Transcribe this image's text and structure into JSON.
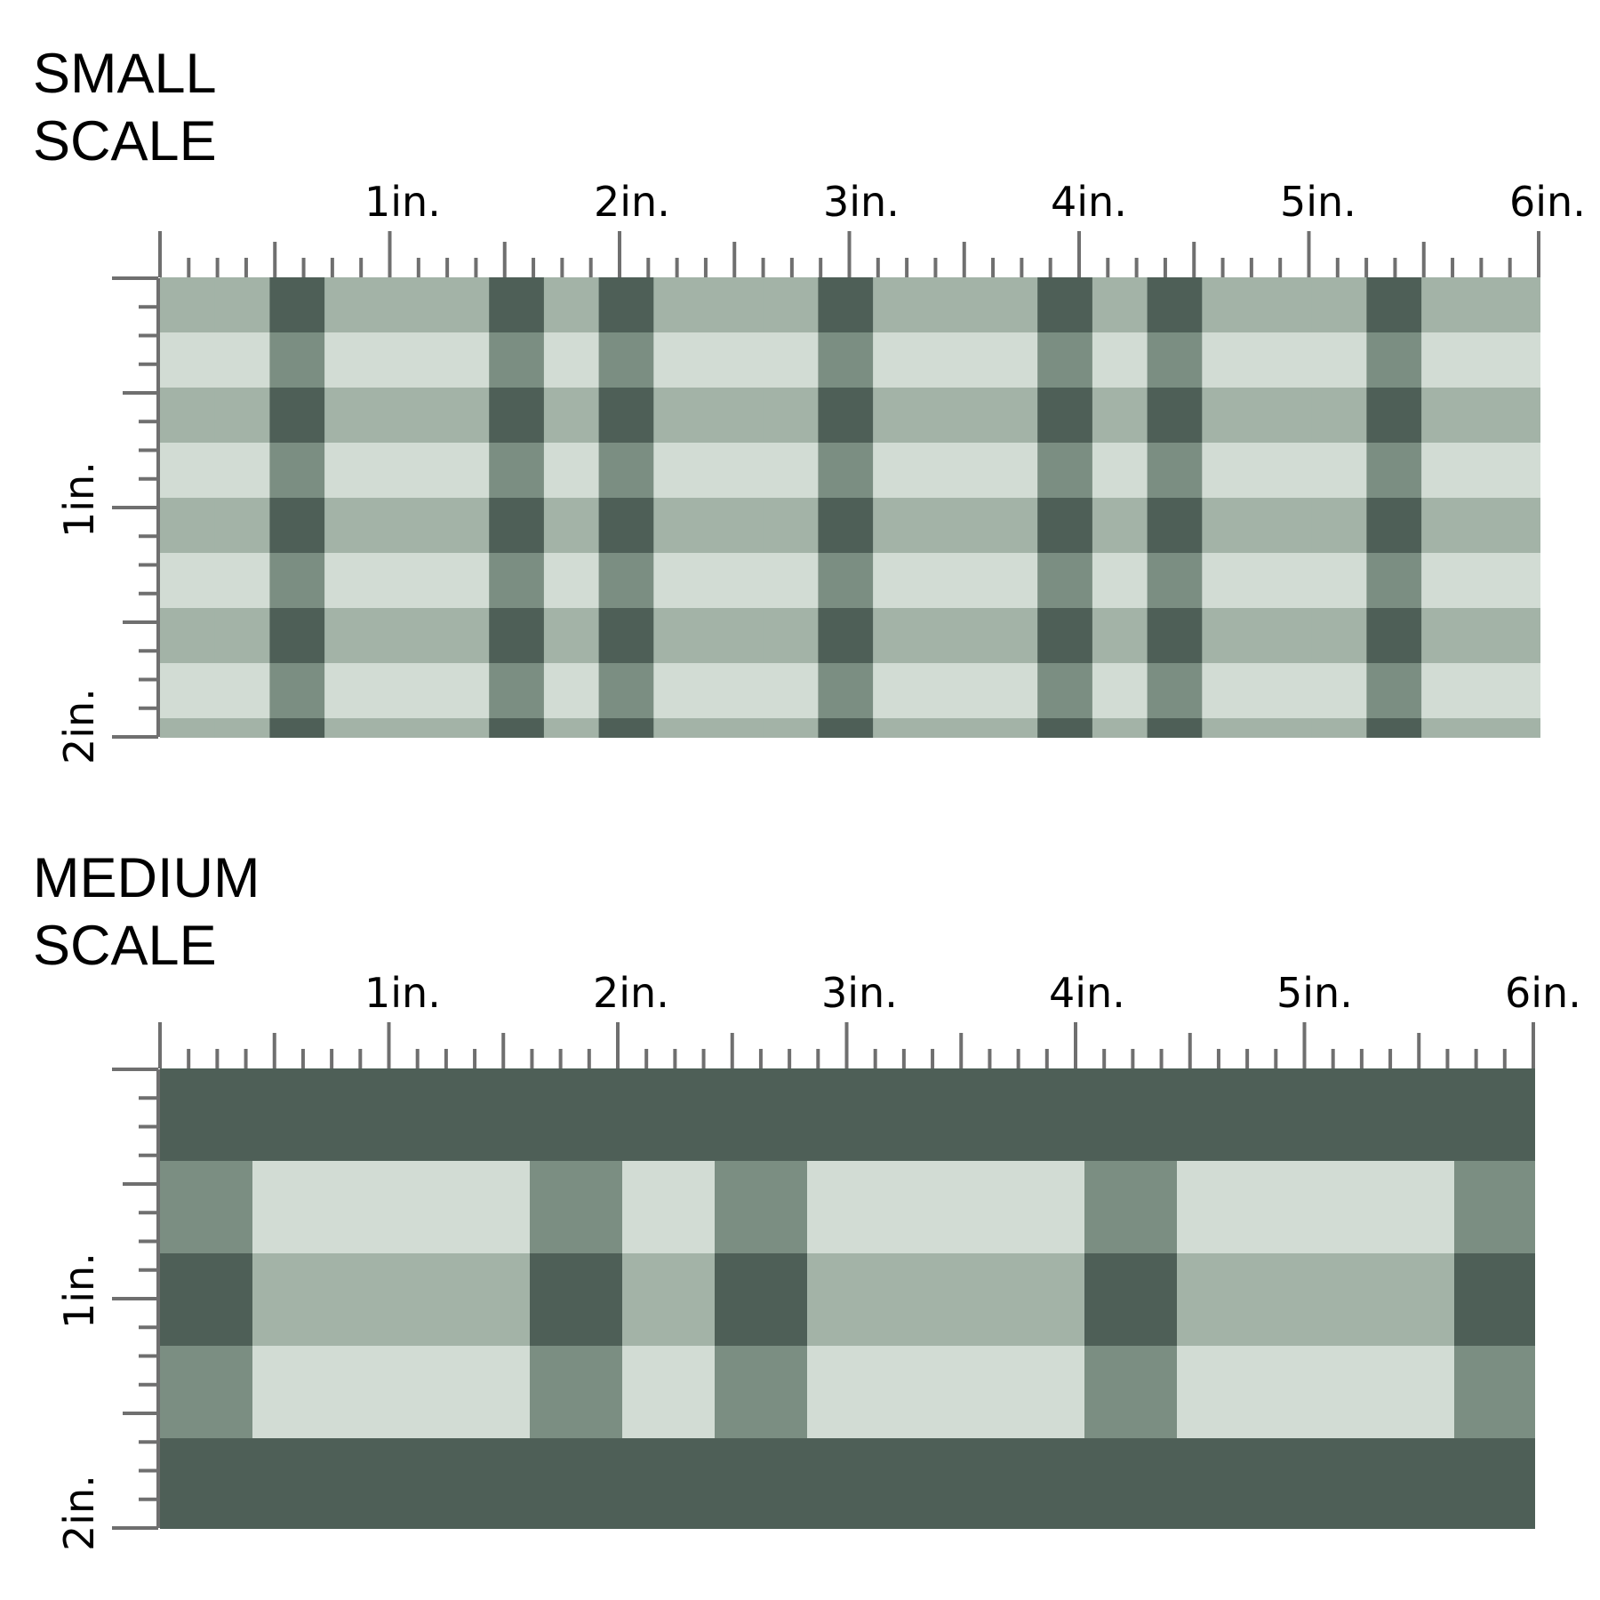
{
  "small": {
    "heading_line1": "SMALL",
    "heading_line2": "SCALE",
    "top_labels": [
      "1in.",
      "2in.",
      "3in.",
      "4in.",
      "5in.",
      "6in."
    ],
    "side_labels": [
      "1in.",
      "2in."
    ]
  },
  "medium": {
    "heading_line1": "MEDIUM",
    "heading_line2": "SCALE",
    "top_labels": [
      "1in.",
      "2in.",
      "3in.",
      "4in.",
      "5in.",
      "6in."
    ],
    "side_labels": [
      "1in.",
      "2in."
    ]
  },
  "colors": {
    "dark_green": "#4e5f57",
    "mid_green": "#7b8e82",
    "sage": "#a3b3a7",
    "pale_sage": "#d2dcd4",
    "cream": "#fdfaf3",
    "ruler": "#6f6f6f"
  }
}
